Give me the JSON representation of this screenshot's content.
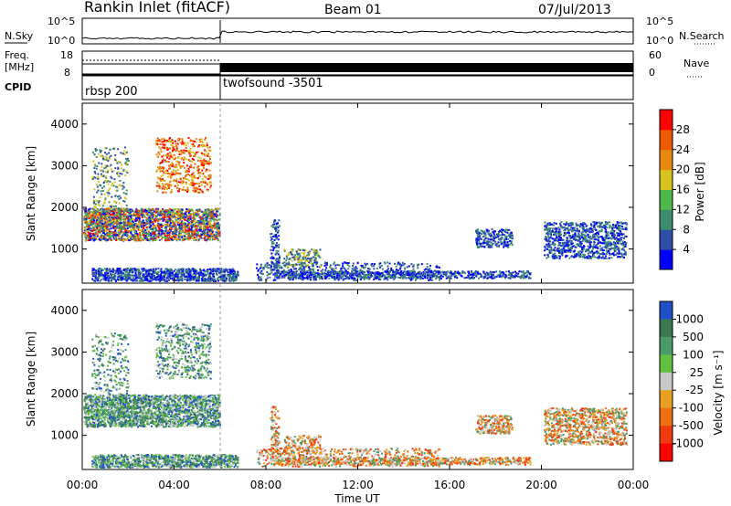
{
  "header": {
    "title": "Rankin Inlet (fitACF)",
    "beam": "Beam 01",
    "date": "07/Jul/2013"
  },
  "top_panels": {
    "nsky": {
      "left_label": "N.Sky",
      "left_tick_top": "10^5",
      "left_tick_bottom": "10^0",
      "right_label": "N.Search",
      "right_tick_top": "10^5",
      "right_tick_bottom": "10^0"
    },
    "freq": {
      "left_label_1": "Freq.",
      "left_label_2": "[MHz]",
      "left_tick_top": "18",
      "left_tick_bottom": "8",
      "right_label": "Nave",
      "right_tick_top": "60",
      "right_tick_bottom": "0"
    },
    "cpid": {
      "label": "CPID",
      "segments": [
        "rbsp 200",
        "twofsound -3501"
      ]
    }
  },
  "chart_data": [
    {
      "type": "heatmap",
      "title": "",
      "xlabel": "",
      "ylabel": "Slant Range [km]",
      "x_ticks": [
        "00:00",
        "04:00",
        "08:00",
        "12:00",
        "16:00",
        "20:00",
        "00:00"
      ],
      "y_ticks": [
        "1000",
        "2000",
        "3000",
        "4000"
      ],
      "ylim": [
        180,
        4500
      ],
      "colorbar": {
        "label": "Power [dB]",
        "ticks": [
          "4",
          "8",
          "12",
          "16",
          "20",
          "24",
          "28"
        ],
        "colors": [
          "#0000ff",
          "#2d4fa8",
          "#3c8c6e",
          "#4fb84a",
          "#d7c21e",
          "#e88a10",
          "#ee5a00",
          "#ff0000"
        ]
      }
    },
    {
      "type": "heatmap",
      "title": "",
      "xlabel": "Time UT",
      "ylabel": "Slant Range [km]",
      "x_ticks": [
        "00:00",
        "04:00",
        "08:00",
        "12:00",
        "16:00",
        "20:00",
        "00:00"
      ],
      "y_ticks": [
        "1000",
        "2000",
        "3000",
        "4000"
      ],
      "ylim": [
        180,
        4500
      ],
      "colorbar": {
        "label": "Velocity [m s⁻¹]",
        "ticks": [
          "1000",
          "500",
          "100",
          "25",
          "-25",
          "-100",
          "-500",
          "-1000"
        ],
        "colors": [
          "#2050c8",
          "#3a7850",
          "#4a9a6a",
          "#60c040",
          "#c8c8c8",
          "#e8a020",
          "#f07010",
          "#f03a10",
          "#ff0000"
        ]
      }
    }
  ]
}
